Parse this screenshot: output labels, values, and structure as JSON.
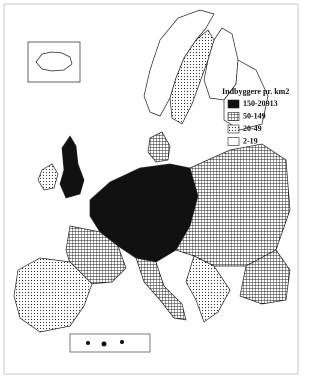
{
  "legend": {
    "title": "Indbyggere pr. km2",
    "items": [
      "150-20913",
      "50-149",
      "20-49",
      "2-19"
    ]
  }
}
